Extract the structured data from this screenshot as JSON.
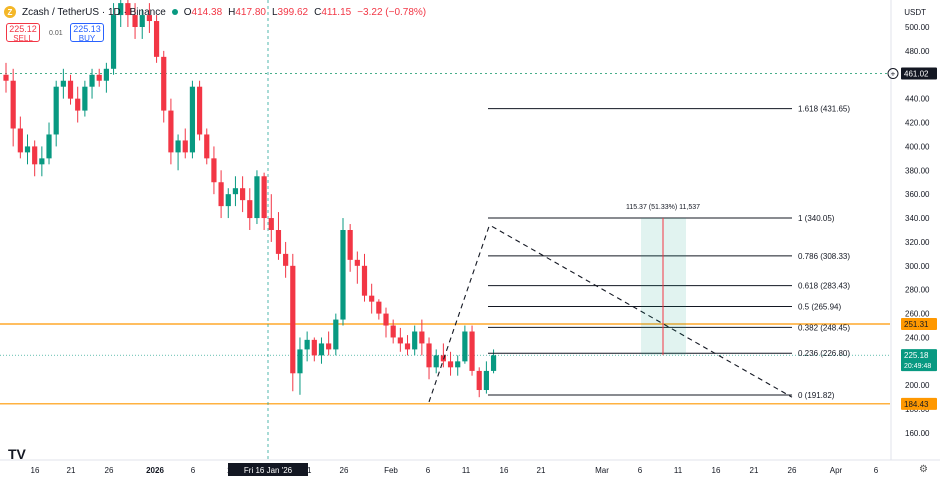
{
  "header": {
    "symbol": "Zcash / TetherUS · 1D · Binance",
    "o_label": "O",
    "o": "414.38",
    "h_label": "H",
    "h": "417.80",
    "l_label": "L",
    "l": "399.62",
    "c_label": "C",
    "c": "411.15",
    "change": "−3.22 (−0.78%)"
  },
  "order_buttons": {
    "sell_price": "225.12",
    "sell_label": "SELL",
    "spread": "0.01",
    "buy_price": "225.13",
    "buy_label": "BUY"
  },
  "currency": "USDT",
  "colors": {
    "up": "#089981",
    "down": "#f23645",
    "accent_orange": "#ff9800",
    "crosshair": "#26a69a"
  },
  "chart_data": {
    "type": "candlestick",
    "y_ticks": [
      160,
      180,
      200,
      220,
      240,
      260,
      280,
      300,
      320,
      340,
      360,
      380,
      400,
      420,
      440,
      460,
      480,
      500
    ],
    "y_tick_labels": [
      "160.00",
      "180.00",
      "200.00",
      "220.00",
      "240.00",
      "260.00",
      "280.00",
      "300.00",
      "320.00",
      "340.00",
      "360.00",
      "380.00",
      "400.00",
      "420.00",
      "440.00",
      "460.00",
      "480.00",
      "500.00"
    ],
    "x_ticks": [
      "16",
      "21",
      "26",
      "2026",
      "6",
      "11",
      "Fri 16 Jan '26",
      "21",
      "26",
      "Feb",
      "6",
      "11",
      "16",
      "21",
      "Mar",
      "6",
      "11",
      "16",
      "21",
      "26",
      "Apr",
      "6"
    ],
    "candles": [
      [
        460,
        470,
        445,
        455
      ],
      [
        455,
        465,
        400,
        415
      ],
      [
        415,
        425,
        390,
        395
      ],
      [
        395,
        410,
        385,
        400
      ],
      [
        400,
        405,
        375,
        385
      ],
      [
        385,
        400,
        375,
        390
      ],
      [
        390,
        420,
        385,
        410
      ],
      [
        410,
        455,
        400,
        450
      ],
      [
        450,
        465,
        440,
        455
      ],
      [
        455,
        460,
        435,
        440
      ],
      [
        440,
        450,
        420,
        430
      ],
      [
        430,
        455,
        425,
        450
      ],
      [
        450,
        465,
        440,
        460
      ],
      [
        460,
        465,
        450,
        455
      ],
      [
        455,
        470,
        445,
        465
      ],
      [
        465,
        520,
        460,
        510
      ],
      [
        510,
        530,
        500,
        520
      ],
      [
        520,
        530,
        500,
        510
      ],
      [
        510,
        520,
        490,
        500
      ],
      [
        500,
        515,
        490,
        510
      ],
      [
        510,
        520,
        495,
        505
      ],
      [
        505,
        510,
        470,
        475
      ],
      [
        475,
        480,
        420,
        430
      ],
      [
        430,
        440,
        385,
        395
      ],
      [
        395,
        410,
        380,
        405
      ],
      [
        405,
        415,
        390,
        395
      ],
      [
        395,
        455,
        390,
        450
      ],
      [
        450,
        455,
        405,
        410
      ],
      [
        410,
        415,
        385,
        390
      ],
      [
        390,
        400,
        360,
        370
      ],
      [
        370,
        380,
        340,
        350
      ],
      [
        350,
        365,
        340,
        360
      ],
      [
        360,
        375,
        350,
        365
      ],
      [
        365,
        375,
        345,
        355
      ],
      [
        355,
        365,
        330,
        340
      ],
      [
        340,
        380,
        335,
        375
      ],
      [
        375,
        378,
        330,
        340
      ],
      [
        340,
        360,
        320,
        330
      ],
      [
        330,
        345,
        305,
        310
      ],
      [
        310,
        320,
        290,
        300
      ],
      [
        300,
        310,
        195,
        210
      ],
      [
        210,
        240,
        192,
        230
      ],
      [
        230,
        245,
        220,
        238
      ],
      [
        238,
        240,
        220,
        225
      ],
      [
        225,
        240,
        218,
        235
      ],
      [
        235,
        245,
        225,
        230
      ],
      [
        230,
        260,
        225,
        255
      ],
      [
        255,
        340,
        250,
        330
      ],
      [
        330,
        335,
        295,
        305
      ],
      [
        305,
        312,
        285,
        300
      ],
      [
        300,
        310,
        270,
        275
      ],
      [
        275,
        285,
        260,
        270
      ],
      [
        270,
        272,
        255,
        260
      ],
      [
        260,
        265,
        240,
        250
      ],
      [
        250,
        255,
        235,
        240
      ],
      [
        240,
        248,
        228,
        235
      ],
      [
        235,
        242,
        225,
        230
      ],
      [
        230,
        250,
        225,
        245
      ],
      [
        245,
        255,
        225,
        235
      ],
      [
        235,
        240,
        205,
        215
      ],
      [
        215,
        230,
        210,
        225
      ],
      [
        225,
        235,
        215,
        220
      ],
      [
        220,
        228,
        208,
        215
      ],
      [
        215,
        225,
        208,
        220
      ],
      [
        220,
        250,
        218,
        245
      ],
      [
        245,
        250,
        208,
        212
      ],
      [
        212,
        215,
        190,
        196
      ],
      [
        196,
        220,
        193,
        212
      ],
      [
        212,
        230,
        210,
        225
      ]
    ],
    "fib_levels": [
      {
        "ratio": "1.618",
        "value": 431.65,
        "label": "1.618 (431.65)"
      },
      {
        "ratio": "1",
        "value": 340.05,
        "label": "1 (340.05)"
      },
      {
        "ratio": "0.786",
        "value": 308.33,
        "label": "0.786 (308.33)"
      },
      {
        "ratio": "0.618",
        "value": 283.43,
        "label": "0.618 (283.43)"
      },
      {
        "ratio": "0.5",
        "value": 265.94,
        "label": "0.5 (265.94)"
      },
      {
        "ratio": "0.382",
        "value": 248.45,
        "label": "0.382 (248.45)"
      },
      {
        "ratio": "0.236",
        "value": 226.8,
        "label": "0.236 (226.80)"
      },
      {
        "ratio": "0",
        "value": 191.82,
        "label": "0 (191.82)"
      }
    ],
    "measure_label": "115.37 (51.33%) 11,537",
    "price_tags": [
      {
        "value": 461.02,
        "label": "461.02",
        "style": "dark"
      },
      {
        "value": 251.31,
        "label": "251.31",
        "style": "orange"
      },
      {
        "value": 225.18,
        "label": "225.18",
        "style": "green",
        "sub": "20:49:48"
      },
      {
        "value": 184.43,
        "label": "184.43",
        "style": "orange"
      }
    ],
    "horizontal_lines": [
      251.31,
      184.43
    ],
    "dashed_level": 461.02,
    "current_price": 225.18,
    "crosshair_date_label": "Fri 16 Jan '26"
  }
}
